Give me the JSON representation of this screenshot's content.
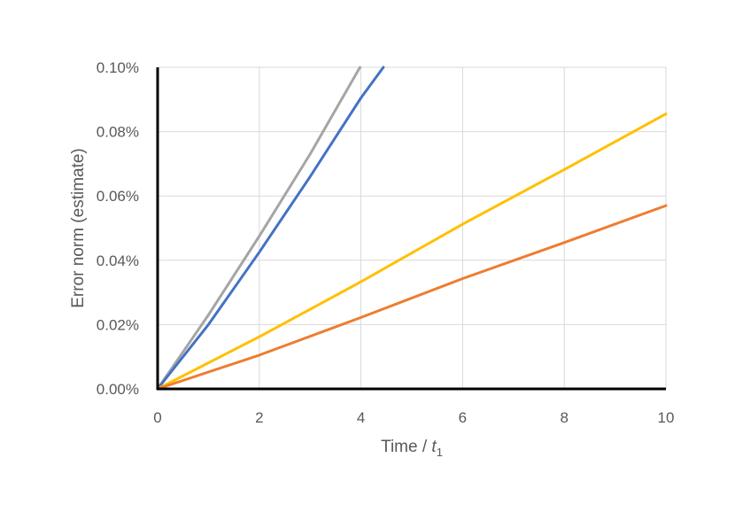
{
  "chart_data": {
    "type": "line",
    "title": "",
    "xlabel": "Time / ",
    "xlabel_var": "t",
    "xlabel_sub": "1",
    "ylabel": "Error norm (estimate)",
    "xlim": [
      0,
      10
    ],
    "ylim": [
      0,
      0.1
    ],
    "x_ticks": [
      0,
      2,
      4,
      6,
      8,
      10
    ],
    "x_tick_labels": [
      "0",
      "2",
      "4",
      "6",
      "8",
      "10"
    ],
    "y_ticks": [
      0,
      0.02,
      0.04,
      0.06,
      0.08,
      0.1
    ],
    "y_tick_labels": [
      "0.00%",
      "0.02%",
      "0.04%",
      "0.06%",
      "0.08%",
      "0.10%"
    ],
    "grid": true,
    "legend": "none",
    "series": [
      {
        "color": "#A5A5A5",
        "x": [
          0,
          1,
          2,
          3,
          3.98
        ],
        "y": [
          0,
          0.023,
          0.0475,
          0.073,
          0.1
        ]
      },
      {
        "color": "#4472C4",
        "x": [
          0,
          1,
          2,
          3,
          4,
          4.44
        ],
        "y": [
          0,
          0.02,
          0.0425,
          0.066,
          0.0905,
          0.1
        ]
      },
      {
        "color": "#FFC000",
        "x": [
          0,
          2,
          4,
          6,
          8,
          10
        ],
        "y": [
          0,
          0.0162,
          0.0333,
          0.0512,
          0.0682,
          0.0855
        ]
      },
      {
        "color": "#ED7D31",
        "x": [
          0,
          2,
          4,
          6,
          8,
          10
        ],
        "y": [
          0,
          0.0105,
          0.0222,
          0.0343,
          0.0455,
          0.057
        ]
      }
    ]
  }
}
